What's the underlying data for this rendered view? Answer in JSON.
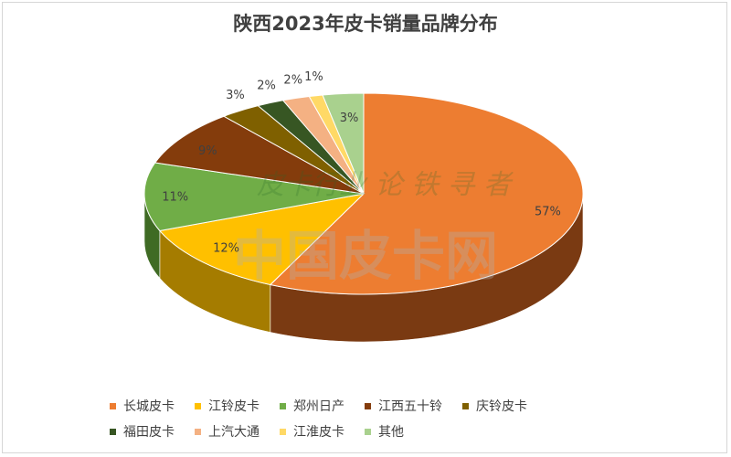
{
  "title": "陕西2023年皮卡销量品牌分布",
  "watermark": [
    "皮卡行业   论 铁 寻 者",
    "中国皮卡网"
  ],
  "chart_data": {
    "type": "pie",
    "title": "陕西2023年皮卡销量品牌分布",
    "slices": [
      {
        "label": "长城皮卡",
        "value": 57,
        "value_label": "57%",
        "color": "#ED7D31",
        "side_color": "#7A3A12"
      },
      {
        "label": "江铃皮卡",
        "value": 12,
        "value_label": "12%",
        "color": "#FFC000",
        "side_color": "#A57C00"
      },
      {
        "label": "郑州日产",
        "value": 11,
        "value_label": "11%",
        "color": "#70AD47",
        "side_color": "#3F6B24"
      },
      {
        "label": "江西五十铃",
        "value": 9,
        "value_label": "9%",
        "color": "#843C0C",
        "side_color": "#4A2206"
      },
      {
        "label": "庆铃皮卡",
        "value": 3,
        "value_label": "3%",
        "color": "#7F6000",
        "side_color": "#4A3800"
      },
      {
        "label": "福田皮卡",
        "value": 2,
        "value_label": "2%",
        "color": "#375623",
        "side_color": "#1F3213"
      },
      {
        "label": "上汽大通",
        "value": 2,
        "value_label": "2%",
        "color": "#F4B183",
        "side_color": "#B0714A"
      },
      {
        "label": "江淮皮卡",
        "value": 1,
        "value_label": "1%",
        "color": "#FFD966",
        "side_color": "#B89A33"
      },
      {
        "label": "其他",
        "value": 3,
        "value_label": "3%",
        "color": "#A9D18E",
        "side_color": "#6E9556"
      }
    ],
    "legend_position": "bottom"
  }
}
